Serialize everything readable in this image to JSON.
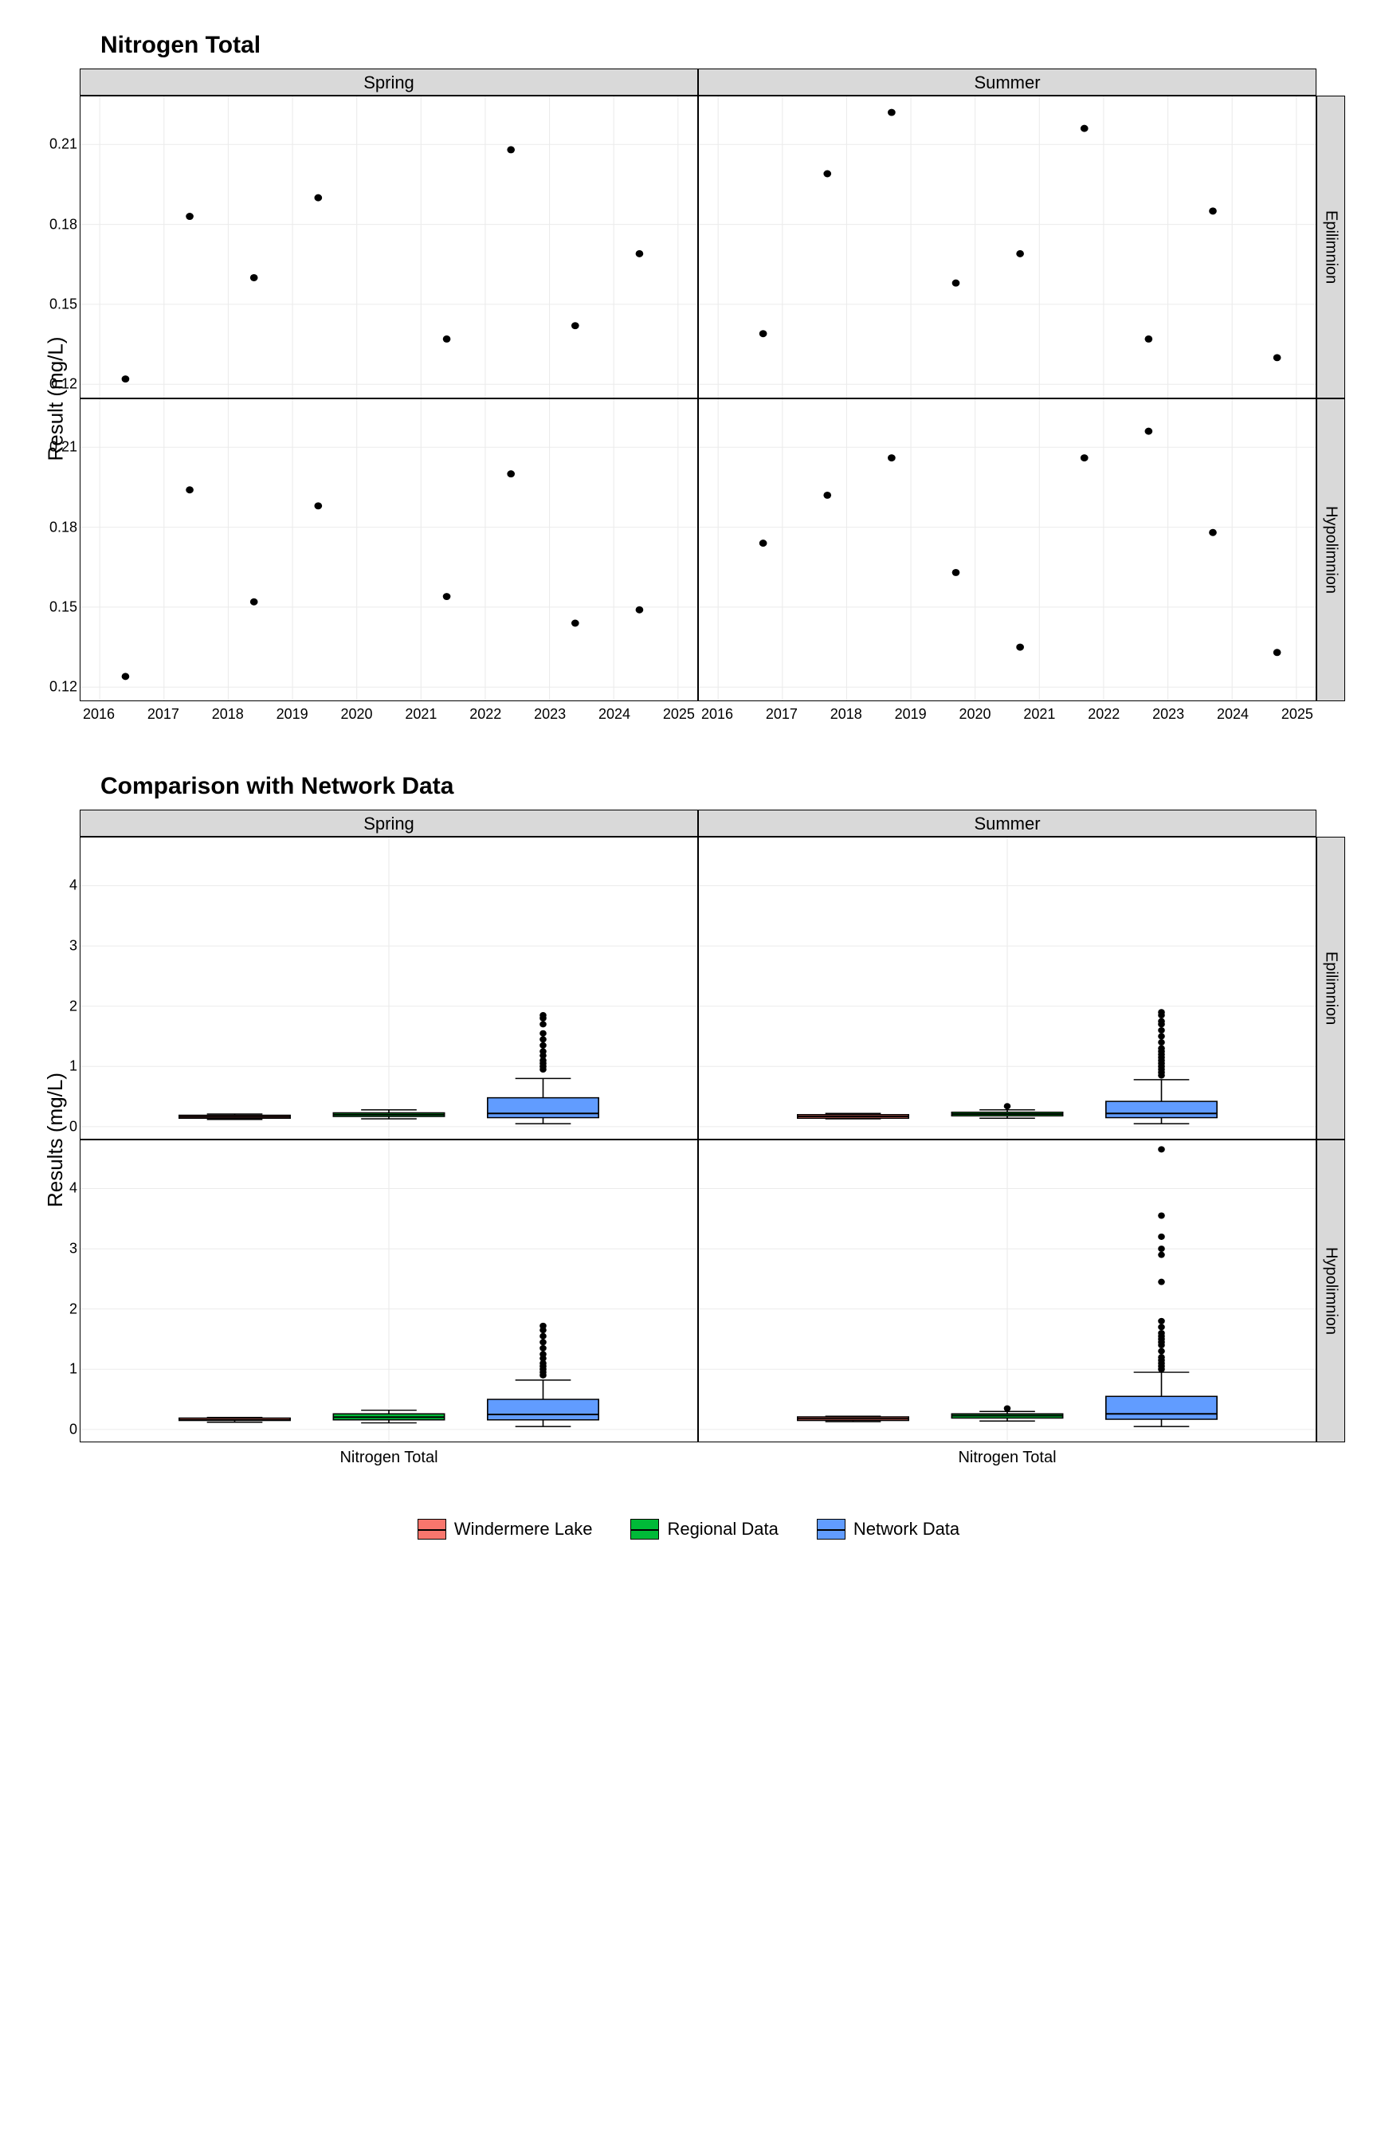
{
  "chart1": {
    "title": "Nitrogen Total",
    "y_label": "Result (mg/L)",
    "ylim": [
      0.115,
      0.228
    ],
    "yticks": [
      0.12,
      0.15,
      0.18,
      0.21
    ],
    "xlim": [
      2015.7,
      2025.3
    ],
    "xticks": [
      2016,
      2017,
      2018,
      2019,
      2020,
      2021,
      2022,
      2023,
      2024,
      2025
    ],
    "grid_color": "#ebebeb",
    "point_color": "#000000",
    "point_radius": 4.5,
    "col_facets": [
      "Spring",
      "Summer"
    ],
    "row_facets": [
      "Epilimnion",
      "Hypolimnion"
    ],
    "panels": {
      "Spring_Epilimnion": [
        {
          "x": 2016.4,
          "y": 0.122
        },
        {
          "x": 2017.4,
          "y": 0.183
        },
        {
          "x": 2018.4,
          "y": 0.16
        },
        {
          "x": 2019.4,
          "y": 0.19
        },
        {
          "x": 2021.4,
          "y": 0.137
        },
        {
          "x": 2022.4,
          "y": 0.208
        },
        {
          "x": 2023.4,
          "y": 0.142
        },
        {
          "x": 2024.4,
          "y": 0.169
        }
      ],
      "Summer_Epilimnion": [
        {
          "x": 2016.7,
          "y": 0.139
        },
        {
          "x": 2017.7,
          "y": 0.199
        },
        {
          "x": 2018.7,
          "y": 0.222
        },
        {
          "x": 2019.7,
          "y": 0.158
        },
        {
          "x": 2020.7,
          "y": 0.169
        },
        {
          "x": 2021.7,
          "y": 0.216
        },
        {
          "x": 2022.7,
          "y": 0.137
        },
        {
          "x": 2023.7,
          "y": 0.185
        },
        {
          "x": 2024.7,
          "y": 0.13
        }
      ],
      "Spring_Hypolimnion": [
        {
          "x": 2016.4,
          "y": 0.124
        },
        {
          "x": 2017.4,
          "y": 0.194
        },
        {
          "x": 2018.4,
          "y": 0.152
        },
        {
          "x": 2019.4,
          "y": 0.188
        },
        {
          "x": 2021.4,
          "y": 0.154
        },
        {
          "x": 2022.4,
          "y": 0.2
        },
        {
          "x": 2023.4,
          "y": 0.144
        },
        {
          "x": 2024.4,
          "y": 0.149
        }
      ],
      "Summer_Hypolimnion": [
        {
          "x": 2016.7,
          "y": 0.174
        },
        {
          "x": 2017.7,
          "y": 0.192
        },
        {
          "x": 2018.7,
          "y": 0.206
        },
        {
          "x": 2019.7,
          "y": 0.163
        },
        {
          "x": 2020.7,
          "y": 0.135
        },
        {
          "x": 2021.7,
          "y": 0.206
        },
        {
          "x": 2022.7,
          "y": 0.216
        },
        {
          "x": 2023.7,
          "y": 0.178
        },
        {
          "x": 2024.7,
          "y": 0.133
        }
      ]
    }
  },
  "chart2": {
    "title": "Comparison with Network Data",
    "y_label": "Results (mg/L)",
    "ylim": [
      -0.2,
      4.8
    ],
    "yticks": [
      0,
      1,
      2,
      3,
      4
    ],
    "x_category": "Nitrogen Total",
    "grid_color": "#ebebeb",
    "col_facets": [
      "Spring",
      "Summer"
    ],
    "row_facets": [
      "Epilimnion",
      "Hypolimnion"
    ],
    "series": [
      {
        "id": "windermere",
        "label": "Windermere Lake",
        "color": "#f8766d"
      },
      {
        "id": "regional",
        "label": "Regional Data",
        "color": "#00ba38"
      },
      {
        "id": "network",
        "label": "Network Data",
        "color": "#619cff"
      }
    ],
    "series_colors": {
      "windermere": "#f8766d",
      "regional": "#00ba38",
      "network": "#619cff"
    },
    "x_positions": {
      "windermere": 0.25,
      "regional": 0.5,
      "network": 0.75
    },
    "box_width": 0.18,
    "whisker_color": "#000000",
    "outlier_radius": 4,
    "panels": {
      "Spring_Epilimnion": {
        "windermere": {
          "min": 0.12,
          "q1": 0.14,
          "med": 0.165,
          "q3": 0.19,
          "max": 0.21,
          "outliers": []
        },
        "regional": {
          "min": 0.13,
          "q1": 0.17,
          "med": 0.2,
          "q3": 0.23,
          "max": 0.28,
          "outliers": []
        },
        "network": {
          "min": 0.05,
          "q1": 0.15,
          "med": 0.22,
          "q3": 0.48,
          "max": 0.8,
          "outliers": [
            0.95,
            1.0,
            1.05,
            1.1,
            1.18,
            1.25,
            1.35,
            1.45,
            1.55,
            1.7,
            1.8,
            1.85
          ]
        }
      },
      "Summer_Epilimnion": {
        "windermere": {
          "min": 0.13,
          "q1": 0.14,
          "med": 0.17,
          "q3": 0.2,
          "max": 0.22,
          "outliers": []
        },
        "regional": {
          "min": 0.14,
          "q1": 0.18,
          "med": 0.21,
          "q3": 0.24,
          "max": 0.28,
          "outliers": [
            0.34
          ]
        },
        "network": {
          "min": 0.05,
          "q1": 0.15,
          "med": 0.22,
          "q3": 0.42,
          "max": 0.78,
          "outliers": [
            0.85,
            0.9,
            0.95,
            1.0,
            1.05,
            1.1,
            1.15,
            1.2,
            1.25,
            1.3,
            1.4,
            1.5,
            1.6,
            1.7,
            1.75,
            1.85,
            1.9
          ]
        }
      },
      "Spring_Hypolimnion": {
        "windermere": {
          "min": 0.12,
          "q1": 0.15,
          "med": 0.16,
          "q3": 0.19,
          "max": 0.2,
          "outliers": []
        },
        "regional": {
          "min": 0.11,
          "q1": 0.16,
          "med": 0.205,
          "q3": 0.26,
          "max": 0.32,
          "outliers": []
        },
        "network": {
          "min": 0.05,
          "q1": 0.16,
          "med": 0.25,
          "q3": 0.5,
          "max": 0.82,
          "outliers": [
            0.9,
            0.95,
            1.0,
            1.05,
            1.1,
            1.18,
            1.25,
            1.35,
            1.45,
            1.55,
            1.65,
            1.72
          ]
        }
      },
      "Summer_Hypolimnion": {
        "windermere": {
          "min": 0.13,
          "q1": 0.15,
          "med": 0.18,
          "q3": 0.21,
          "max": 0.22,
          "outliers": []
        },
        "regional": {
          "min": 0.14,
          "q1": 0.19,
          "med": 0.23,
          "q3": 0.26,
          "max": 0.3,
          "outliers": [
            0.35
          ]
        },
        "network": {
          "min": 0.05,
          "q1": 0.17,
          "med": 0.26,
          "q3": 0.55,
          "max": 0.95,
          "outliers": [
            1.0,
            1.05,
            1.1,
            1.15,
            1.2,
            1.3,
            1.4,
            1.45,
            1.5,
            1.55,
            1.6,
            1.7,
            1.8,
            2.45,
            2.9,
            3.0,
            3.2,
            3.55,
            4.65
          ]
        }
      }
    }
  }
}
